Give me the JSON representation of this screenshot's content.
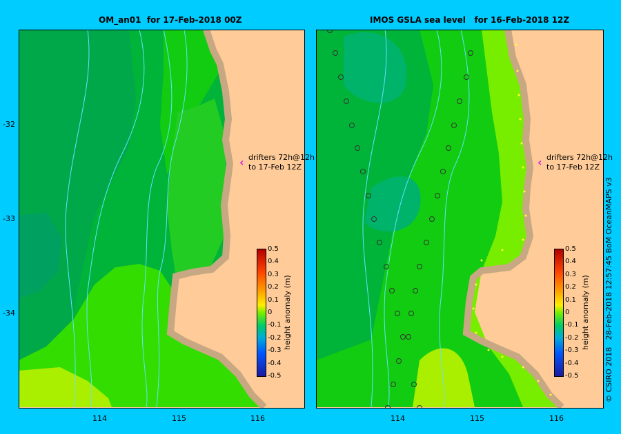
{
  "panels": [
    {
      "title": "OM_an01  for 17-Feb-2018 00Z"
    },
    {
      "title": "IMOS GSLA sea level   for 16-Feb-2018 12Z"
    }
  ],
  "y_ticks": [
    "-32",
    "-33",
    "-34"
  ],
  "x_ticks": [
    "114",
    "115",
    "116"
  ],
  "drifters_note": {
    "line1": "drifters 72h@12h",
    "line2": "to 17-Feb 12Z"
  },
  "colorbar": {
    "label": "height anomaly (m)",
    "ticks": [
      "0.5",
      "0.4",
      "0.3",
      "0.2",
      "0.1",
      "0",
      "-0.1",
      "-0.2",
      "-0.3",
      "-0.4",
      "-0.5"
    ],
    "range": [
      -0.5,
      0.5
    ]
  },
  "credit": "© CSIRO 2018   28-Feb-2018 12:57:45 BoM OceanMAPS v3",
  "colors": {
    "frame": "#00ccff",
    "land": "#ffcc99",
    "coast": "#c8a882",
    "contour": "#66e0ff",
    "drifter_arrow": "#e020e0"
  }
}
